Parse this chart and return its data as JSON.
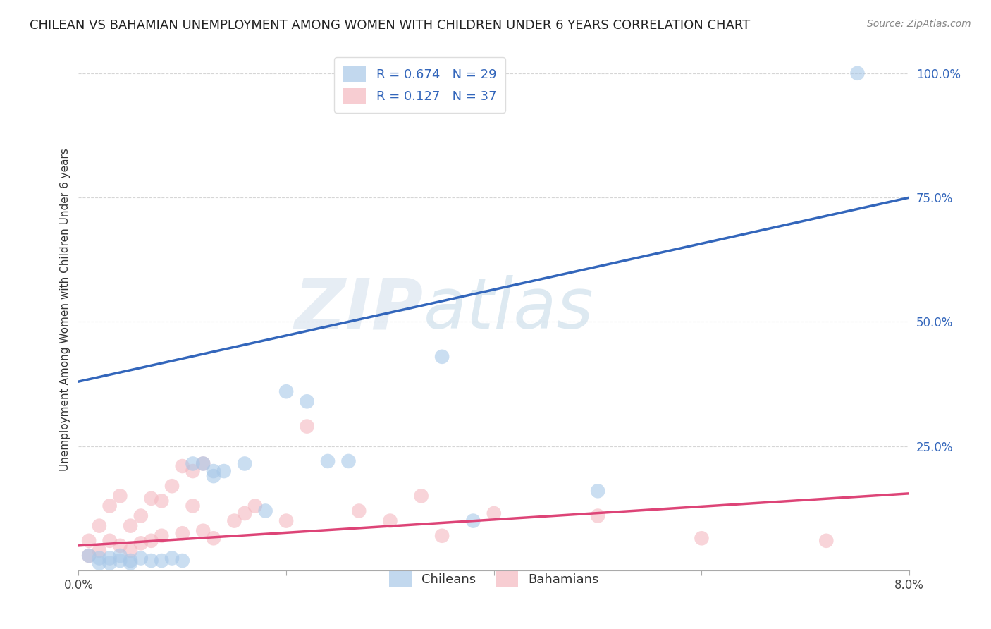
{
  "title": "CHILEAN VS BAHAMIAN UNEMPLOYMENT AMONG WOMEN WITH CHILDREN UNDER 6 YEARS CORRELATION CHART",
  "source": "Source: ZipAtlas.com",
  "ylabel": "Unemployment Among Women with Children Under 6 years",
  "watermark_zip": "ZIP",
  "watermark_atlas": "atlas",
  "legend_blue_label": "Chileans",
  "legend_pink_label": "Bahamians",
  "R_blue": "0.674",
  "N_blue": "29",
  "R_pink": "0.127",
  "N_pink": "37",
  "blue_color": "#a8c8e8",
  "pink_color": "#f4b8c0",
  "blue_line_color": "#3366bb",
  "pink_line_color": "#dd4477",
  "blue_scatter_x": [
    0.001,
    0.002,
    0.002,
    0.003,
    0.003,
    0.004,
    0.004,
    0.005,
    0.005,
    0.006,
    0.007,
    0.008,
    0.009,
    0.01,
    0.011,
    0.012,
    0.013,
    0.013,
    0.014,
    0.016,
    0.018,
    0.02,
    0.022,
    0.024,
    0.026,
    0.035,
    0.038,
    0.05,
    0.075
  ],
  "blue_scatter_y": [
    0.03,
    0.025,
    0.015,
    0.025,
    0.015,
    0.02,
    0.03,
    0.02,
    0.015,
    0.025,
    0.02,
    0.02,
    0.025,
    0.02,
    0.215,
    0.215,
    0.2,
    0.19,
    0.2,
    0.215,
    0.12,
    0.36,
    0.34,
    0.22,
    0.22,
    0.43,
    0.1,
    0.16,
    1.0
  ],
  "pink_scatter_x": [
    0.001,
    0.001,
    0.002,
    0.002,
    0.003,
    0.003,
    0.004,
    0.004,
    0.005,
    0.005,
    0.006,
    0.006,
    0.007,
    0.007,
    0.008,
    0.008,
    0.009,
    0.01,
    0.01,
    0.011,
    0.011,
    0.012,
    0.012,
    0.013,
    0.015,
    0.016,
    0.017,
    0.02,
    0.022,
    0.027,
    0.03,
    0.033,
    0.035,
    0.04,
    0.05,
    0.06,
    0.072
  ],
  "pink_scatter_y": [
    0.06,
    0.03,
    0.09,
    0.04,
    0.13,
    0.06,
    0.15,
    0.05,
    0.09,
    0.04,
    0.11,
    0.055,
    0.145,
    0.06,
    0.07,
    0.14,
    0.17,
    0.21,
    0.075,
    0.13,
    0.2,
    0.08,
    0.215,
    0.065,
    0.1,
    0.115,
    0.13,
    0.1,
    0.29,
    0.12,
    0.1,
    0.15,
    0.07,
    0.115,
    0.11,
    0.065,
    0.06
  ],
  "blue_line_x": [
    0.0,
    0.08
  ],
  "blue_line_y": [
    0.38,
    0.75
  ],
  "pink_line_x": [
    0.0,
    0.08
  ],
  "pink_line_y": [
    0.05,
    0.155
  ],
  "xlim": [
    0.0,
    0.08
  ],
  "ylim": [
    0.0,
    1.05
  ],
  "ytick_vals": [
    0.0,
    0.25,
    0.5,
    0.75,
    1.0
  ],
  "ytick_labels": [
    "",
    "25.0%",
    "50.0%",
    "75.0%",
    "100.0%"
  ],
  "xtick_vals": [
    0.0,
    0.02,
    0.04,
    0.06,
    0.08
  ],
  "xtick_labels": [
    "0.0%",
    "",
    "",
    "",
    "8.0%"
  ],
  "background_color": "#ffffff",
  "grid_color": "#cccccc",
  "title_fontsize": 13,
  "axis_label_fontsize": 11,
  "tick_fontsize": 12
}
